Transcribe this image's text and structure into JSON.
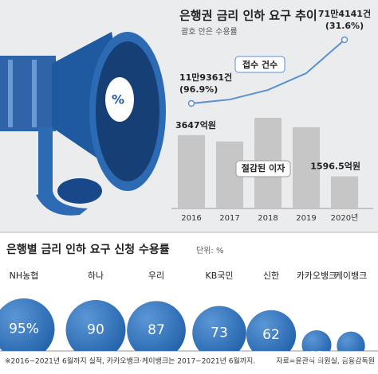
{
  "chart_data": [
    {
      "type": "bar-line",
      "title": "은행권 금리 인하 요구 추이",
      "subtitle": "괄호 안은 수용률",
      "categories": [
        "2016",
        "2017",
        "2018",
        "2019",
        "2020년"
      ],
      "series": [
        {
          "name": "절감된 이자",
          "type": "bar",
          "color": "#c6c6c6",
          "values": [
            3647,
            3330,
            4510,
            4040,
            1596.5
          ],
          "value_labels": [
            "3647억원",
            null,
            null,
            null,
            "1596.5억원"
          ]
        },
        {
          "name": "접수 건수",
          "type": "line",
          "color": "#5b8fd0",
          "values": [
            119361,
            156000,
            245000,
            402000,
            714141
          ],
          "value_labels": [
            "11만9361건",
            null,
            null,
            null,
            "71만4141건"
          ],
          "rates": [
            96.9,
            null,
            null,
            null,
            31.6
          ],
          "rate_labels": [
            "(96.9%)",
            null,
            null,
            null,
            "(31.6%)"
          ]
        }
      ]
    },
    {
      "type": "bubble",
      "title": "은행별 금리 인하 요구 신청 수용률",
      "unit": "단위: %",
      "categories": [
        "NH농협",
        "하나",
        "우리",
        "KB국민",
        "신한",
        "카카오뱅크",
        "케이뱅크"
      ],
      "values": [
        95,
        90,
        87,
        73,
        62,
        22,
        20
      ],
      "value_labels": [
        "95%",
        null,
        null,
        null,
        null,
        null,
        null
      ],
      "color": "#2a68b0"
    }
  ],
  "footnote": "※2016~2021년 6월까지 실적, 카카오뱅크·케이뱅크는 2017~2021년 6월까지.",
  "source": "자료=윤관석 의원실, 금융감독원"
}
